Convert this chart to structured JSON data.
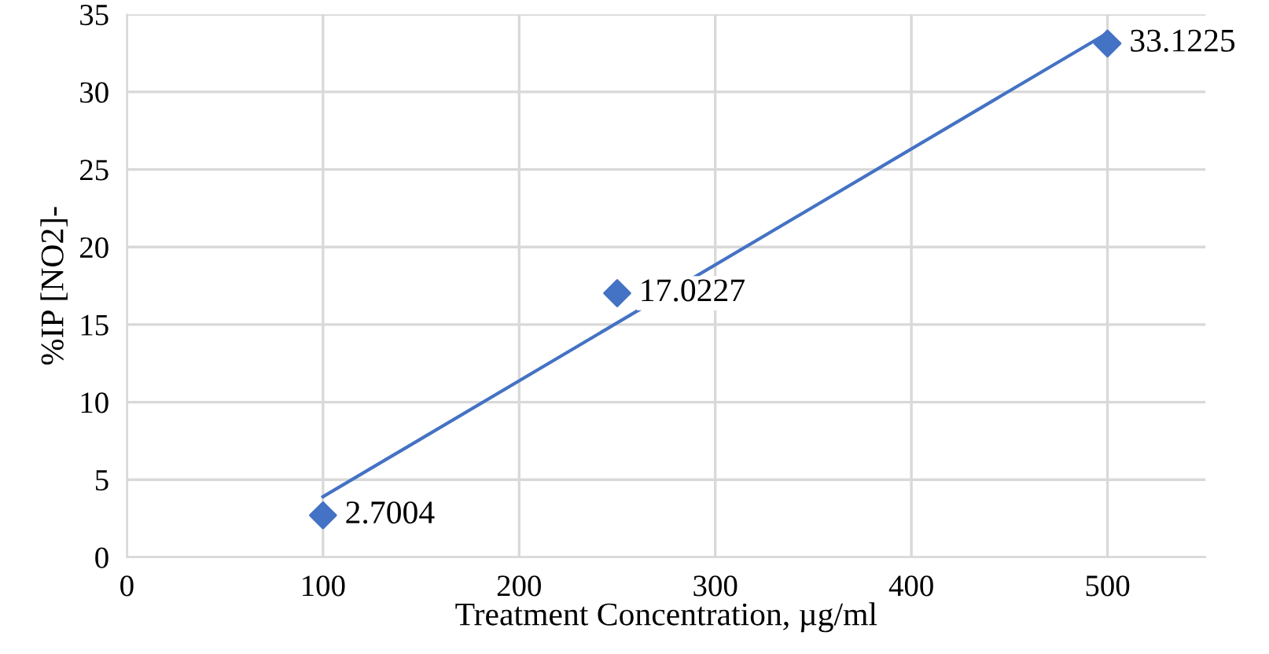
{
  "chart_data": {
    "type": "scatter",
    "xlabel": "Treatment Concentration, µg/ml",
    "ylabel": "%IP [NO2]-",
    "series": [
      {
        "color": "#4472c4",
        "x": [
          100,
          250,
          500
        ],
        "values": [
          2.7004,
          17.0227,
          33.1225
        ],
        "marker": "diamond",
        "data_labels": true
      },
      {
        "type": "line",
        "color": "#4472c4",
        "x": [
          100,
          500
        ],
        "values": [
          3.9,
          33.8
        ],
        "marker": "none",
        "line_style": "solid"
      }
    ],
    "xlim": [
      0,
      550
    ],
    "xticks": [
      0,
      100,
      200,
      300,
      400,
      500
    ],
    "ylim": [
      0,
      35
    ],
    "yticks": [
      0,
      5,
      10,
      15,
      20,
      25,
      30,
      35
    ],
    "grid": true,
    "legend": false
  }
}
